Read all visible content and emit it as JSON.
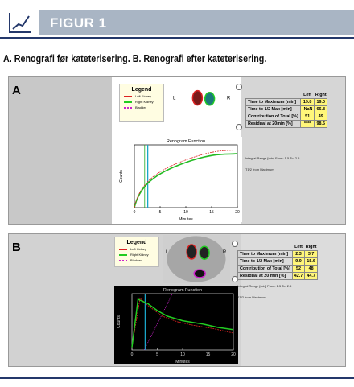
{
  "header": {
    "title": "FIGUR 1"
  },
  "caption": "A. Renografi før kateterisering. B. Renografi efter kateterisering.",
  "panels": [
    {
      "label": "A",
      "legend": {
        "title": "Legend",
        "items": [
          "Left Kidney",
          "Right Kidney",
          "Bladder"
        ]
      },
      "image_labels": [
        "L",
        "R"
      ],
      "chart": {
        "title": "Renogram Function",
        "y_label": "Counts",
        "x_label": "Minutes",
        "x_ticks": [
          0,
          5,
          10,
          15,
          20
        ]
      },
      "table": {
        "columns": [
          "Left",
          "Right"
        ],
        "rows": [
          [
            "Time to Maximum [min]",
            "19.8",
            "19.0"
          ],
          [
            "Time to 1/2 Max [min]",
            "-NaN",
            "66.8"
          ],
          [
            "Contribution of Total [%]",
            "51",
            "49"
          ],
          [
            "Residual at 20min [%]",
            "****",
            "98.6"
          ]
        ]
      },
      "notes": [
        "Integral Range [min] From: 1.5 To: 2.5",
        "T1/2 from Maximum"
      ]
    },
    {
      "label": "B",
      "legend": {
        "title": "Legend",
        "items": [
          "Left Kidney",
          "Right Kidney",
          "Bladder"
        ]
      },
      "image_labels": [
        "L",
        "R"
      ],
      "chart": {
        "title": "Renogram Function",
        "y_label": "Counts",
        "x_label": "Minutes",
        "x_ticks": [
          0,
          5,
          10,
          15,
          20
        ]
      },
      "table": {
        "columns": [
          "Left",
          "Right"
        ],
        "rows": [
          [
            "Time to Maximum [min]",
            "2.3",
            "3.7"
          ],
          [
            "Time to 1/2 Max [min]",
            "9.9",
            "15.6"
          ],
          [
            "Contribution of Total [%]",
            "52",
            "48"
          ],
          [
            "Residual at 20 min [%]",
            "42.7",
            "44.7"
          ]
        ]
      },
      "notes": [
        "Integral Range [min] From: 1.5 To: 2.5",
        "T1/2 from Maximum"
      ]
    }
  ]
}
